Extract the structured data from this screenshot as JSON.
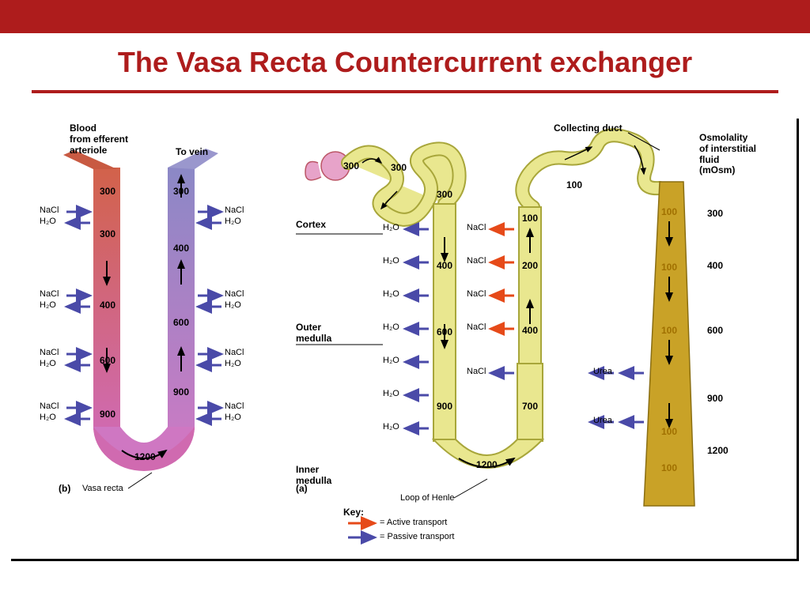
{
  "header": {
    "bar_color": "#ae1c1c",
    "title": "The Vasa Recta Countercurrent exchanger",
    "title_color": "#ae1c1c",
    "title_fontsize": 36
  },
  "colors": {
    "passive_arrow": "#4a4aa8",
    "active_arrow": "#e64a19",
    "black": "#000000",
    "descending_top": "#d2624a",
    "descending_bottom": "#d06ab0",
    "ascending_top": "#8b88c6",
    "ascending_bottom": "#c77bc4",
    "henle_fill": "#e9e78f",
    "henle_stroke": "#a8a63a",
    "collecting_fill": "#c9a227",
    "glomerulus": "#e7a3c9"
  },
  "vasa_recta": {
    "panel_label": "(b)",
    "structure_label": "Vasa recta",
    "label_in": "Blood\nfrom efferent\narteriole",
    "label_out": "To vein",
    "descending_values": [
      300,
      300,
      400,
      600,
      900
    ],
    "ascending_values": [
      300,
      400,
      600,
      900
    ],
    "loop_bottom_value": 1200,
    "exchange_labels_left": [
      "NaCl",
      "H₂O",
      "NaCl",
      "H₂O",
      "NaCl",
      "H₂O",
      "NaCl",
      "H₂O"
    ],
    "exchange_labels_right": [
      "NaCl",
      "H₂O",
      "NaCl",
      "H₂O",
      "NaCl",
      "H₂O",
      "NaCl",
      "H₂O"
    ]
  },
  "henle": {
    "panel_label": "(a)",
    "structure_label": "Loop of Henle",
    "collecting_label": "Collecting duct",
    "osmo_label": "Osmolality\nof interstitial\nfluid\n(mOsm)",
    "zones": [
      "Cortex",
      "Outer\nmedulla",
      "Inner\nmedulla"
    ],
    "glomerulus_value": 300,
    "proximal_values": [
      300,
      300,
      100
    ],
    "descending_values": [
      400,
      600,
      900
    ],
    "ascending_values": [
      100,
      200,
      400,
      700
    ],
    "descending_labels": [
      "H₂O",
      "H₂O",
      "H₂O",
      "H₂O",
      "H₂O",
      "H₂O",
      "H₂O"
    ],
    "ascending_nacl_count": 5,
    "loop_bottom_value": 1200,
    "collecting_values": [
      100,
      100,
      100,
      100
    ],
    "collecting_bottom_value": 100,
    "urea_label": "Urea",
    "osmo_scale": [
      300,
      400,
      600,
      900,
      1200
    ]
  },
  "key": {
    "title": "Key:",
    "active": "= Active transport",
    "passive": "= Passive transport"
  }
}
